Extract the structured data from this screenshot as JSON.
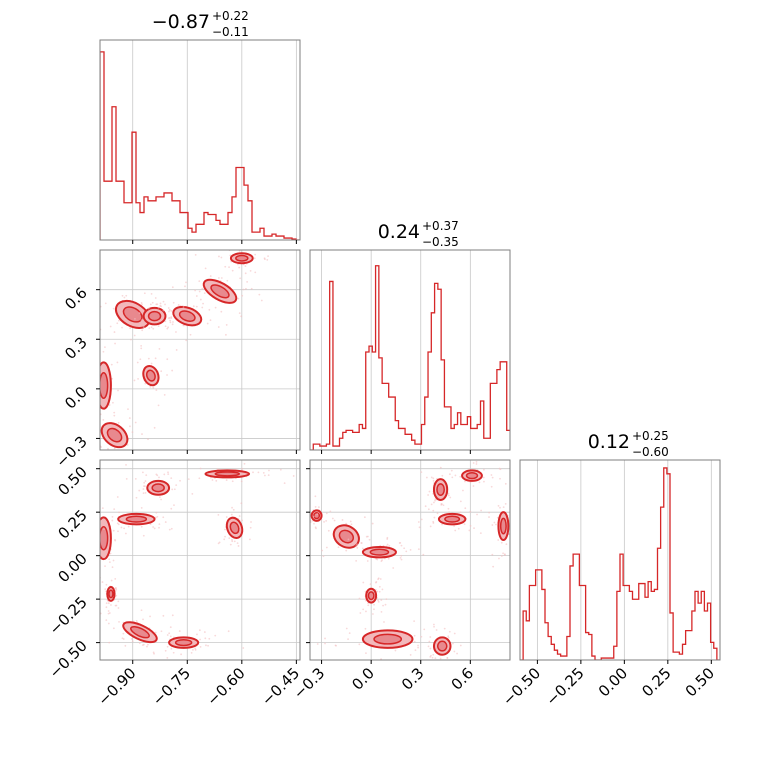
{
  "chart_data": {
    "type": "corner",
    "line_color": "#d62728",
    "fill_color": "#f2b8bb",
    "axis_color": "#7f7f7f",
    "grid": true,
    "parameters": [
      {
        "median": "−0.87",
        "plus": "+0.22",
        "minus": "−0.11",
        "range": [
          -0.99,
          -0.44
        ]
      },
      {
        "median": "0.24",
        "plus": "+0.37",
        "minus": "−0.35",
        "range": [
          -0.37,
          0.84
        ]
      },
      {
        "median": "0.12",
        "plus": "+0.25",
        "minus": "−0.60",
        "range": [
          -0.6,
          0.55
        ]
      }
    ],
    "ticks": [
      {
        "values": [
          -0.9,
          -0.75,
          -0.6,
          -0.45
        ],
        "labels": [
          "−0.90",
          "−0.75",
          "−0.60",
          "−0.45"
        ]
      },
      {
        "values": [
          -0.3,
          0.0,
          0.3,
          0.6
        ],
        "labels": [
          "−0.3",
          "0.0",
          "0.3",
          "0.6"
        ]
      },
      {
        "values": [
          -0.5,
          -0.25,
          0.0,
          0.25,
          0.5
        ],
        "labels": [
          "−0.50",
          "−0.25",
          "0.00",
          "0.25",
          "0.50"
        ]
      }
    ],
    "histograms": [
      {
        "param": 0,
        "edges_range": [
          -0.99,
          -0.44
        ],
        "counts": [
          0.96,
          0.3,
          0.3,
          0.68,
          0.3,
          0.3,
          0.19,
          0.19,
          0.55,
          0.19,
          0.14,
          0.22,
          0.2,
          0.2,
          0.22,
          0.22,
          0.24,
          0.24,
          0.2,
          0.2,
          0.14,
          0.14,
          0.06,
          0.04,
          0.08,
          0.08,
          0.14,
          0.13,
          0.13,
          0.1,
          0.08,
          0.08,
          0.14,
          0.22,
          0.37,
          0.37,
          0.28,
          0.2,
          0.04,
          0.04,
          0.06,
          0.02,
          0.02,
          0.03,
          0.02,
          0.02,
          0.01,
          0.01,
          0.005,
          0.0
        ]
      },
      {
        "param": 1,
        "edges_range": [
          -0.37,
          0.84
        ],
        "counts": [
          0.0,
          0.03,
          0.03,
          0.02,
          0.02,
          0.03,
          0.86,
          0.02,
          0.02,
          0.06,
          0.09,
          0.1,
          0.1,
          0.09,
          0.09,
          0.13,
          0.11,
          0.5,
          0.53,
          0.5,
          0.94,
          0.47,
          0.34,
          0.34,
          0.27,
          0.27,
          0.15,
          0.11,
          0.11,
          0.08,
          0.08,
          0.05,
          0.03,
          0.03,
          0.13,
          0.27,
          0.5,
          0.7,
          0.85,
          0.82,
          0.46,
          0.22,
          0.22,
          0.11,
          0.13,
          0.19,
          0.13,
          0.13,
          0.17,
          0.11,
          0.11,
          0.13,
          0.25,
          0.06,
          0.06,
          0.34,
          0.34,
          0.41,
          0.45,
          0.45,
          0.1
        ]
      },
      {
        "param": 2,
        "edges_range": [
          -0.6,
          0.55
        ],
        "counts": [
          0.0,
          0.25,
          0.2,
          0.38,
          0.38,
          0.46,
          0.46,
          0.36,
          0.19,
          0.12,
          0.08,
          0.05,
          0.03,
          0.02,
          0.02,
          0.12,
          0.48,
          0.54,
          0.54,
          0.38,
          0.38,
          0.14,
          0.13,
          0.02,
          0.0,
          0.0,
          0.01,
          0.01,
          0.01,
          0.01,
          0.07,
          0.35,
          0.54,
          0.38,
          0.38,
          0.35,
          0.31,
          0.31,
          0.39,
          0.39,
          0.32,
          0.4,
          0.35,
          0.36,
          0.57,
          0.78,
          0.98,
          0.95,
          0.24,
          0.04,
          0.04,
          0.03,
          0.08,
          0.15,
          0.15,
          0.25,
          0.35,
          0.29,
          0.35,
          0.25,
          0.29,
          0.09,
          0.06,
          0.0
        ]
      }
    ],
    "scatter_2d": [
      {
        "x_param": 0,
        "y_param": 1,
        "clusters": [
          {
            "cx": -0.98,
            "cy": 0.02,
            "rx": 0.02,
            "ry": 0.14,
            "rot": 0
          },
          {
            "cx": -0.95,
            "cy": -0.28,
            "rx": 0.04,
            "ry": 0.06,
            "rot": 40
          },
          {
            "cx": -0.9,
            "cy": 0.45,
            "rx": 0.05,
            "ry": 0.07,
            "rot": 30
          },
          {
            "cx": -0.84,
            "cy": 0.44,
            "rx": 0.03,
            "ry": 0.05,
            "rot": 0
          },
          {
            "cx": -0.85,
            "cy": 0.08,
            "rx": 0.02,
            "ry": 0.06,
            "rot": -20
          },
          {
            "cx": -0.75,
            "cy": 0.44,
            "rx": 0.04,
            "ry": 0.05,
            "rot": 20
          },
          {
            "cx": -0.66,
            "cy": 0.59,
            "rx": 0.05,
            "ry": 0.05,
            "rot": 30
          },
          {
            "cx": -0.6,
            "cy": 0.79,
            "rx": 0.03,
            "ry": 0.03,
            "rot": 0
          }
        ]
      },
      {
        "x_param": 0,
        "y_param": 2,
        "clusters": [
          {
            "cx": -0.98,
            "cy": 0.1,
            "rx": 0.02,
            "ry": 0.12,
            "rot": 0
          },
          {
            "cx": -0.96,
            "cy": -0.22,
            "rx": 0.01,
            "ry": 0.04,
            "rot": 0
          },
          {
            "cx": -0.89,
            "cy": 0.21,
            "rx": 0.05,
            "ry": 0.03,
            "rot": 0
          },
          {
            "cx": -0.83,
            "cy": 0.39,
            "rx": 0.03,
            "ry": 0.04,
            "rot": 0
          },
          {
            "cx": -0.88,
            "cy": -0.44,
            "rx": 0.05,
            "ry": 0.04,
            "rot": 25
          },
          {
            "cx": -0.76,
            "cy": -0.5,
            "rx": 0.04,
            "ry": 0.03,
            "rot": 0
          },
          {
            "cx": -0.64,
            "cy": 0.47,
            "rx": 0.06,
            "ry": 0.02,
            "rot": 0
          },
          {
            "cx": -0.62,
            "cy": 0.16,
            "rx": 0.02,
            "ry": 0.06,
            "rot": -20
          }
        ]
      },
      {
        "x_param": 1,
        "y_param": 2,
        "clusters": [
          {
            "cx": -0.33,
            "cy": 0.23,
            "rx": 0.03,
            "ry": 0.03,
            "rot": 0
          },
          {
            "cx": -0.15,
            "cy": 0.11,
            "rx": 0.08,
            "ry": 0.06,
            "rot": 30
          },
          {
            "cx": 0.05,
            "cy": 0.02,
            "rx": 0.1,
            "ry": 0.03,
            "rot": 0
          },
          {
            "cx": 0.0,
            "cy": -0.23,
            "rx": 0.03,
            "ry": 0.04,
            "rot": 0
          },
          {
            "cx": 0.1,
            "cy": -0.48,
            "rx": 0.15,
            "ry": 0.05,
            "rot": 0
          },
          {
            "cx": 0.43,
            "cy": -0.52,
            "rx": 0.05,
            "ry": 0.05,
            "rot": 0
          },
          {
            "cx": 0.42,
            "cy": 0.38,
            "rx": 0.04,
            "ry": 0.06,
            "rot": 0
          },
          {
            "cx": 0.49,
            "cy": 0.21,
            "rx": 0.08,
            "ry": 0.03,
            "rot": 0
          },
          {
            "cx": 0.61,
            "cy": 0.46,
            "rx": 0.06,
            "ry": 0.03,
            "rot": 0
          },
          {
            "cx": 0.8,
            "cy": 0.17,
            "rx": 0.03,
            "ry": 0.08,
            "rot": 0
          }
        ]
      }
    ]
  }
}
